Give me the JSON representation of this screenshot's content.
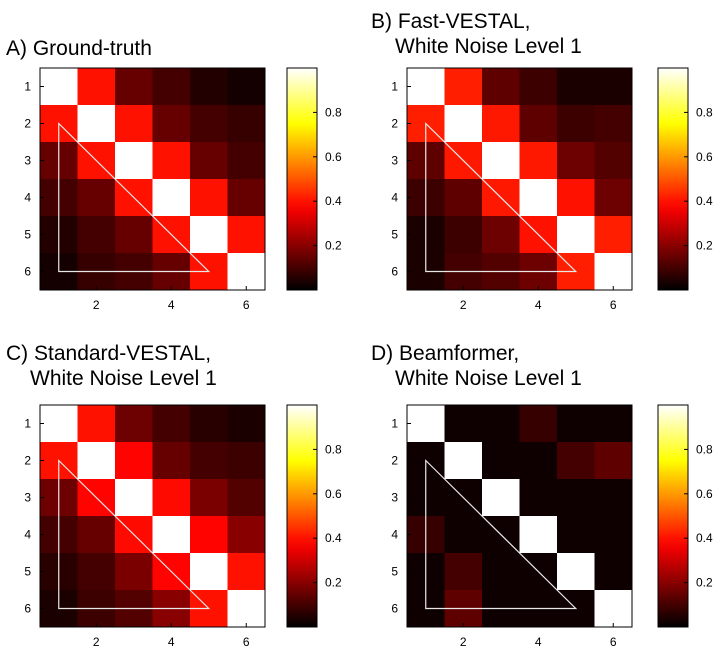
{
  "chart_data": [
    {
      "type": "heatmap",
      "title_lines": [
        "A) Ground-truth"
      ],
      "x_ticks": [
        "2",
        "4",
        "6"
      ],
      "y_ticks": [
        "1",
        "2",
        "3",
        "4",
        "5",
        "6"
      ],
      "colorbar_ticks": [
        "0.2",
        "0.4",
        "0.6",
        "0.8"
      ],
      "colorbar_range": [
        0,
        1
      ],
      "colormap": "hot",
      "annotation": "white triangle outline over lower triangle",
      "matrix": [
        [
          1.0,
          0.4,
          0.15,
          0.1,
          0.05,
          0.03
        ],
        [
          0.4,
          1.0,
          0.4,
          0.15,
          0.1,
          0.08
        ],
        [
          0.15,
          0.4,
          1.0,
          0.4,
          0.15,
          0.1
        ],
        [
          0.1,
          0.15,
          0.4,
          1.0,
          0.4,
          0.15
        ],
        [
          0.05,
          0.1,
          0.15,
          0.4,
          1.0,
          0.4
        ],
        [
          0.03,
          0.08,
          0.1,
          0.15,
          0.4,
          1.0
        ]
      ]
    },
    {
      "type": "heatmap",
      "title_lines": [
        "B) Fast-VESTAL,",
        "White Noise Level 1"
      ],
      "x_ticks": [
        "2",
        "4",
        "6"
      ],
      "y_ticks": [
        "1",
        "2",
        "3",
        "4",
        "5",
        "6"
      ],
      "colorbar_ticks": [
        "0.2",
        "0.4",
        "0.6",
        "0.8"
      ],
      "colorbar_range": [
        0,
        1
      ],
      "colormap": "hot",
      "annotation": "white triangle outline over lower triangle",
      "matrix": [
        [
          1.0,
          0.42,
          0.14,
          0.09,
          0.04,
          0.04
        ],
        [
          0.42,
          1.0,
          0.41,
          0.14,
          0.09,
          0.1
        ],
        [
          0.14,
          0.41,
          1.0,
          0.41,
          0.16,
          0.12
        ],
        [
          0.09,
          0.14,
          0.41,
          1.0,
          0.4,
          0.16
        ],
        [
          0.04,
          0.09,
          0.16,
          0.4,
          1.0,
          0.42
        ],
        [
          0.04,
          0.1,
          0.12,
          0.16,
          0.42,
          1.0
        ]
      ]
    },
    {
      "type": "heatmap",
      "title_lines": [
        "C) Standard-VESTAL,",
        "White Noise Level 1"
      ],
      "x_ticks": [
        "2",
        "4",
        "6"
      ],
      "y_ticks": [
        "1",
        "2",
        "3",
        "4",
        "5",
        "6"
      ],
      "colorbar_ticks": [
        "0.2",
        "0.4",
        "0.6",
        "0.8"
      ],
      "colorbar_range": [
        0,
        1
      ],
      "colormap": "hot",
      "annotation": "white triangle outline over lower triangle",
      "matrix": [
        [
          1.0,
          0.4,
          0.16,
          0.1,
          0.06,
          0.04
        ],
        [
          0.4,
          1.0,
          0.38,
          0.15,
          0.1,
          0.09
        ],
        [
          0.16,
          0.38,
          1.0,
          0.39,
          0.18,
          0.12
        ],
        [
          0.1,
          0.15,
          0.39,
          1.0,
          0.38,
          0.2
        ],
        [
          0.06,
          0.1,
          0.18,
          0.38,
          1.0,
          0.4
        ],
        [
          0.04,
          0.09,
          0.12,
          0.2,
          0.4,
          1.0
        ]
      ]
    },
    {
      "type": "heatmap",
      "title_lines": [
        "D) Beamformer,",
        "White Noise Level 1"
      ],
      "x_ticks": [
        "2",
        "4",
        "6"
      ],
      "y_ticks": [
        "1",
        "2",
        "3",
        "4",
        "5",
        "6"
      ],
      "colorbar_ticks": [
        "0.2",
        "0.4",
        "0.6",
        "0.8"
      ],
      "colorbar_range": [
        0,
        1
      ],
      "colormap": "hot",
      "annotation": "white triangle outline over lower triangle",
      "matrix": [
        [
          1.0,
          0.02,
          0.02,
          0.08,
          0.02,
          0.02
        ],
        [
          0.02,
          1.0,
          0.02,
          0.02,
          0.1,
          0.14
        ],
        [
          0.02,
          0.02,
          1.0,
          0.02,
          0.02,
          0.02
        ],
        [
          0.08,
          0.02,
          0.02,
          1.0,
          0.02,
          0.02
        ],
        [
          0.02,
          0.1,
          0.02,
          0.02,
          1.0,
          0.02
        ],
        [
          0.02,
          0.14,
          0.02,
          0.02,
          0.02,
          1.0
        ]
      ]
    }
  ]
}
